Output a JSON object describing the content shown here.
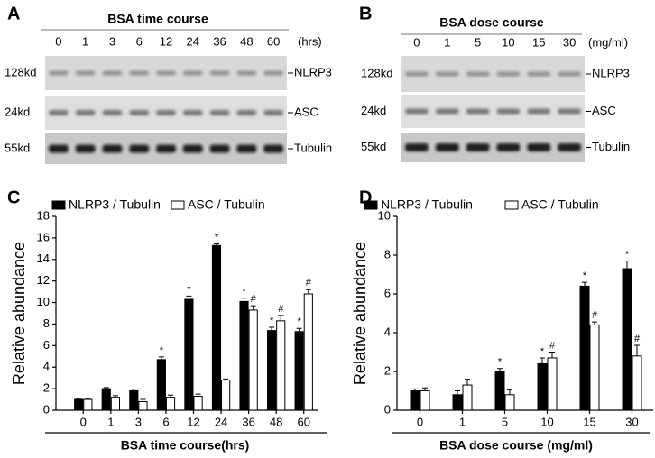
{
  "blots": [
    {
      "label": "A",
      "title": "BSA time course",
      "lanes": [
        "0",
        "1",
        "3",
        "6",
        "12",
        "24",
        "36",
        "48",
        "60"
      ],
      "unit": "(hrs)",
      "rows": [
        {
          "size": "128kd",
          "protein": "NLRP3"
        },
        {
          "size": "24kd",
          "protein": "ASC"
        },
        {
          "size": "55kd",
          "protein": "Tubulin"
        }
      ]
    },
    {
      "label": "B",
      "title": "BSA dose course",
      "lanes": [
        "0",
        "1",
        "5",
        "10",
        "15",
        "30"
      ],
      "unit": "(mg/ml)",
      "rows": [
        {
          "size": "128kd",
          "protein": "NLRP3"
        },
        {
          "size": "24kd",
          "protein": "ASC"
        },
        {
          "size": "55kd",
          "protein": "Tubulin"
        }
      ]
    }
  ],
  "chart_data": [
    {
      "type": "bar",
      "label": "C",
      "x_label": "BSA time course(hrs)",
      "y_label": "Relative abundance",
      "categories": [
        "0",
        "1",
        "3",
        "6",
        "12",
        "24",
        "36",
        "48",
        "60"
      ],
      "series": [
        {
          "name": "NLRP3 / Tubulin",
          "color": "#000000",
          "values": [
            1.0,
            2.0,
            1.8,
            4.7,
            10.3,
            15.3,
            10.1,
            7.4,
            7.3
          ],
          "errors": [
            0.1,
            0.1,
            0.15,
            0.25,
            0.3,
            0.15,
            0.3,
            0.3,
            0.3
          ],
          "markers": [
            null,
            null,
            null,
            "*",
            "*",
            "*",
            "*",
            "*",
            "*"
          ]
        },
        {
          "name": "ASC / Tubulin",
          "color": "#ffffff",
          "values": [
            1.0,
            1.2,
            0.8,
            1.2,
            1.3,
            2.8,
            9.3,
            8.3,
            10.8
          ],
          "errors": [
            0.1,
            0.15,
            0.2,
            0.2,
            0.2,
            0.1,
            0.4,
            0.5,
            0.4
          ],
          "markers": [
            null,
            null,
            null,
            null,
            null,
            null,
            "#",
            "#",
            "#"
          ]
        }
      ],
      "ylim": [
        0,
        18
      ],
      "yticks": [
        0,
        2,
        4,
        6,
        8,
        10,
        12,
        14,
        16,
        18
      ]
    },
    {
      "type": "bar",
      "label": "D",
      "x_label": "BSA dose course (mg/ml)",
      "y_label": "Relative abundance",
      "categories": [
        "0",
        "1",
        "5",
        "10",
        "15",
        "30"
      ],
      "series": [
        {
          "name": "NLRP3 / Tubulin",
          "color": "#000000",
          "values": [
            1.0,
            0.8,
            2.0,
            2.4,
            6.4,
            7.3
          ],
          "errors": [
            0.1,
            0.2,
            0.15,
            0.3,
            0.2,
            0.4
          ],
          "markers": [
            null,
            null,
            "*",
            "*",
            "*",
            "*"
          ]
        },
        {
          "name": "ASC / Tubulin",
          "color": "#ffffff",
          "values": [
            1.0,
            1.3,
            0.8,
            2.7,
            4.4,
            2.8
          ],
          "errors": [
            0.15,
            0.3,
            0.25,
            0.3,
            0.15,
            0.55
          ],
          "markers": [
            null,
            null,
            null,
            "#",
            "#",
            "#"
          ]
        }
      ],
      "ylim": [
        0,
        10
      ],
      "yticks": [
        0,
        2,
        4,
        6,
        8,
        10
      ]
    }
  ]
}
